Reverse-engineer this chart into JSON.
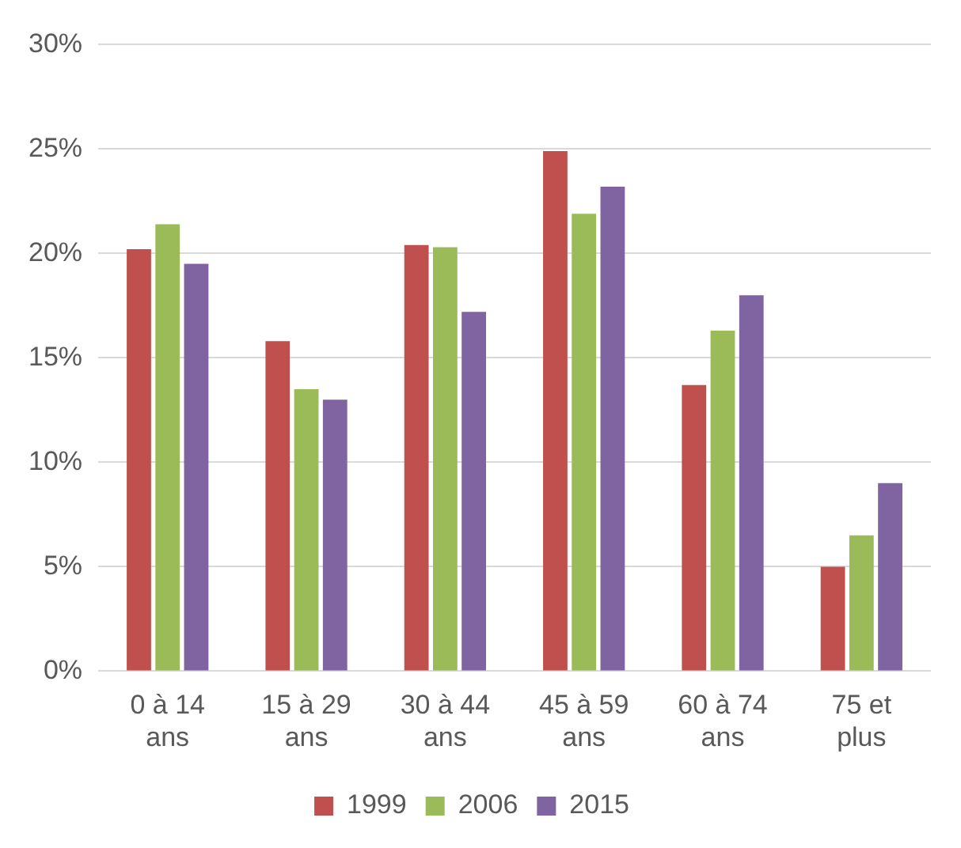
{
  "chart_data": {
    "type": "bar",
    "categories": [
      "0 à 14 ans",
      "15 à 29 ans",
      "30 à 44 ans",
      "45 à 59 ans",
      "60 à 74 ans",
      "75 et plus"
    ],
    "series": [
      {
        "name": "1999",
        "color": "#c0504d",
        "values": [
          20.2,
          15.8,
          20.4,
          24.9,
          13.7,
          5.0
        ]
      },
      {
        "name": "2006",
        "color": "#9bbb59",
        "values": [
          21.4,
          13.5,
          20.3,
          21.9,
          16.3,
          6.5
        ]
      },
      {
        "name": "2015",
        "color": "#8064a2",
        "values": [
          19.5,
          13.0,
          17.2,
          23.2,
          18.0,
          9.0
        ]
      }
    ],
    "ylim": [
      0,
      30
    ],
    "yticks": [
      {
        "value": 0,
        "label": "0%"
      },
      {
        "value": 5,
        "label": "5%"
      },
      {
        "value": 10,
        "label": "10%"
      },
      {
        "value": 15,
        "label": "15%"
      },
      {
        "value": 20,
        "label": "20%"
      },
      {
        "value": 25,
        "label": "25%"
      },
      {
        "value": 30,
        "label": "30%"
      }
    ],
    "grid": "y",
    "legend": "bottom"
  }
}
